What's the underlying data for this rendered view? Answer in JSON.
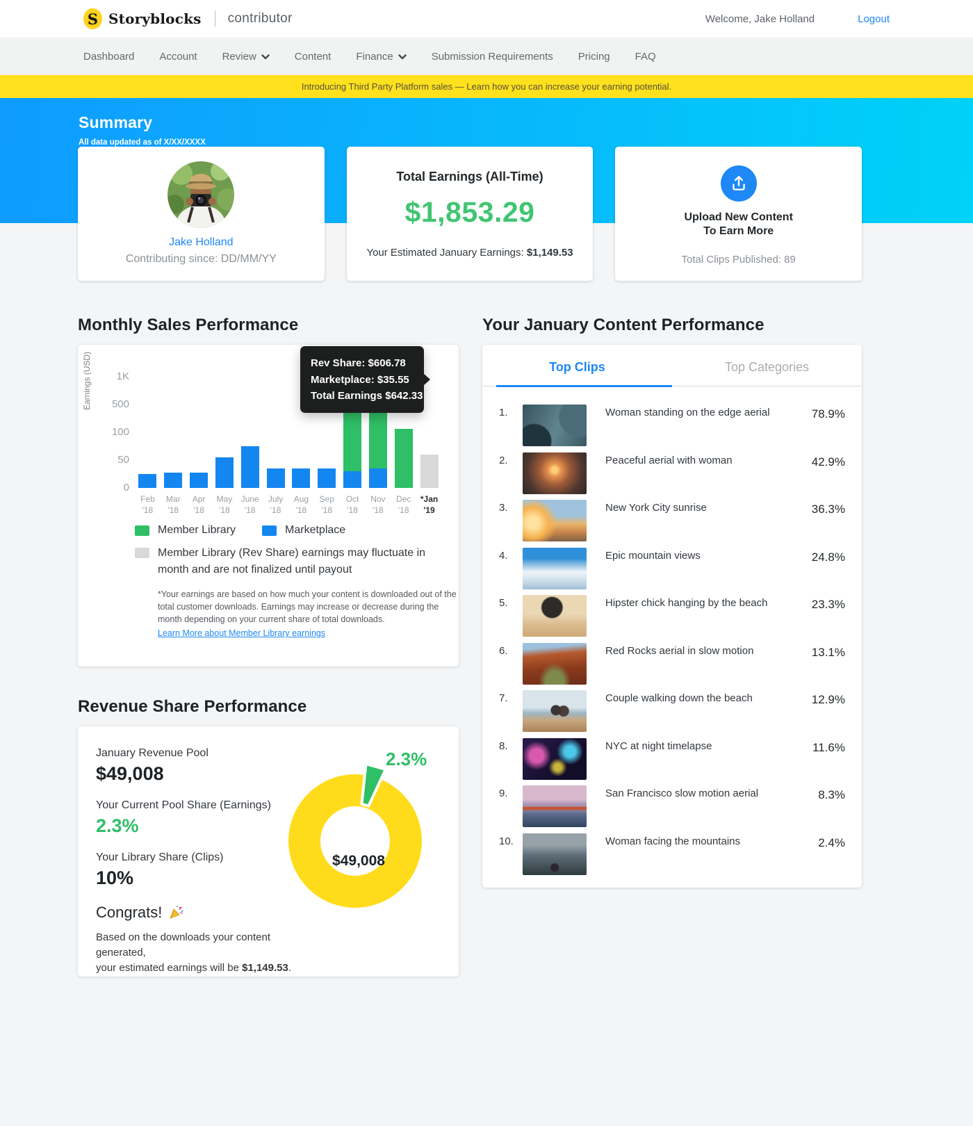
{
  "header": {
    "logo_letter": "S",
    "brand": "Storyblocks",
    "brand_suffix": "contributor",
    "welcome": "Welcome, Jake Holland",
    "logout": "Logout"
  },
  "nav": {
    "items": [
      {
        "label": "Dashboard",
        "dropdown": false
      },
      {
        "label": "Account",
        "dropdown": false
      },
      {
        "label": "Review",
        "dropdown": true
      },
      {
        "label": "Content",
        "dropdown": false
      },
      {
        "label": "Finance",
        "dropdown": true
      },
      {
        "label": "Submission Requirements",
        "dropdown": false
      },
      {
        "label": "Pricing",
        "dropdown": false
      },
      {
        "label": "FAQ",
        "dropdown": false
      }
    ]
  },
  "banner": {
    "message": "Introducing Third Party Platform sales — Learn how you can increase your earning potential."
  },
  "summary": {
    "title": "Summary",
    "updated": "All data updated as of X/XX/XXXX",
    "profile": {
      "name": "Jake Holland",
      "since": "Contributing since: DD/MM/YY"
    },
    "earnings": {
      "label": "Total Earnings (All-Time)",
      "amount": "$1,853.29",
      "estimate_label": "Your Estimated January Earnings: ",
      "estimate_amount": "$1,149.53"
    },
    "upload": {
      "label_line1": "Upload New Content",
      "label_line2": "To Earn More",
      "published": "Total Clips Published: 89"
    }
  },
  "sales": {
    "heading": "Monthly Sales Performance",
    "legend": [
      {
        "label": "Member Library",
        "color": "#2fbf66"
      },
      {
        "label": "Marketplace",
        "color": "#1486f0"
      }
    ],
    "legend_note": "Member Library (Rev Share) earnings may fluctuate in month and are not finalized until payout",
    "legend_note_color": "#d9d9d9",
    "footnote": "*Your earnings are based on how much your content is downloaded out of the total customer downloads. Earnings may increase or decrease during the month depending on your current share of total downloads.",
    "footnote_link": "Learn More about Member Library earnings"
  },
  "chart_data": [
    {
      "type": "bar",
      "stacked": true,
      "title": "Monthly Sales Performance",
      "ylabel": "Earnings (USD)",
      "yticks": [
        "1K",
        "500",
        "100",
        "50",
        "0"
      ],
      "axis_note": "non-linear axis: ticks 0, 50, 100, 500, 1000 evenly spaced",
      "categories": [
        {
          "month": "Feb",
          "year": "'18"
        },
        {
          "month": "Mar",
          "year": "'18"
        },
        {
          "month": "Apr",
          "year": "'18"
        },
        {
          "month": "May",
          "year": "'18"
        },
        {
          "month": "June",
          "year": "'18"
        },
        {
          "month": "July",
          "year": "'18"
        },
        {
          "month": "Aug",
          "year": "'18"
        },
        {
          "month": "Sep",
          "year": "'18"
        },
        {
          "month": "Oct",
          "year": "'18"
        },
        {
          "month": "Nov",
          "year": "'18"
        },
        {
          "month": "Dec",
          "year": "'18"
        },
        {
          "month": "*Jan",
          "year": "'19",
          "emphasis": true
        }
      ],
      "series": [
        {
          "name": "Marketplace",
          "color": "#1486f0",
          "values": [
            25,
            27,
            27,
            55,
            75,
            35,
            35,
            35,
            30,
            35.55,
            0,
            0
          ]
        },
        {
          "name": "Member Library",
          "color": "#2fbf66",
          "values": [
            0,
            0,
            0,
            0,
            0,
            0,
            0,
            0,
            480,
            606.78,
            150,
            0
          ]
        },
        {
          "name": "Estimated (not finalized)",
          "color": "#d9d9d9",
          "values": [
            0,
            0,
            0,
            0,
            0,
            0,
            0,
            0,
            0,
            0,
            0,
            60
          ]
        }
      ],
      "tooltip": {
        "target": "Nov '18",
        "lines": [
          "Rev Share: $606.78",
          "Marketplace: $35.55",
          "Total Earnings $642.33"
        ]
      }
    },
    {
      "type": "pie",
      "title": "January Revenue Pool",
      "center_label": "$49,008",
      "callout": "2.3%",
      "slices": [
        {
          "label": "Pool remainder",
          "value": 97.7,
          "color": "#ffdc1b"
        },
        {
          "label": "Your current pool share",
          "value": 2.3,
          "color": "#2fbf66"
        }
      ]
    }
  ],
  "clips": {
    "heading": "Your January Content Performance",
    "tabs": [
      {
        "label": "Top Clips",
        "active": true
      },
      {
        "label": "Top Categories",
        "active": false
      }
    ],
    "items": [
      {
        "rank": "1.",
        "title": "Woman standing on the edge aerial",
        "value": "78.9%"
      },
      {
        "rank": "2.",
        "title": "Peaceful aerial with woman",
        "value": "42.9%"
      },
      {
        "rank": "3.",
        "title": "New York City sunrise",
        "value": "36.3%"
      },
      {
        "rank": "4.",
        "title": "Epic mountain views",
        "value": "24.8%"
      },
      {
        "rank": "5.",
        "title": "Hipster chick hanging by the beach",
        "value": "23.3%"
      },
      {
        "rank": "6.",
        "title": "Red Rocks aerial in slow motion",
        "value": "13.1%"
      },
      {
        "rank": "7.",
        "title": "Couple walking down the beach",
        "value": "12.9%"
      },
      {
        "rank": "8.",
        "title": "NYC at night timelapse",
        "value": "11.6%"
      },
      {
        "rank": "9.",
        "title": "San Francisco slow motion aerial",
        "value": "8.3%"
      },
      {
        "rank": "10.",
        "title": "Woman facing the mountains",
        "value": "2.4%"
      }
    ]
  },
  "revenue": {
    "heading": "Revenue Share Performance",
    "pool_label": "January Revenue Pool",
    "pool_value": "$49,008",
    "share_label": "Your Current Pool Share (Earnings)",
    "share_value": "2.3%",
    "library_label": "Your Library Share (Clips)",
    "library_value": "10%",
    "congrats": "Congrats!",
    "message_line1": "Based on the downloads your content generated,",
    "message_line2": "your estimated earnings will be ",
    "message_amount": "$1,149.53",
    "message_suffix": "."
  },
  "colors": {
    "accent_blue": "#1486f0",
    "link_blue": "#1e88f7",
    "chart_green": "#2fbf66",
    "money_green": "#41c573",
    "banner_yellow": "#ffe11d",
    "donut_yellow": "#ffdc1b",
    "estimated_gray": "#d9d9d9",
    "hero_gradient_left": "#0f9bff",
    "hero_gradient_right": "#00d2f8"
  }
}
